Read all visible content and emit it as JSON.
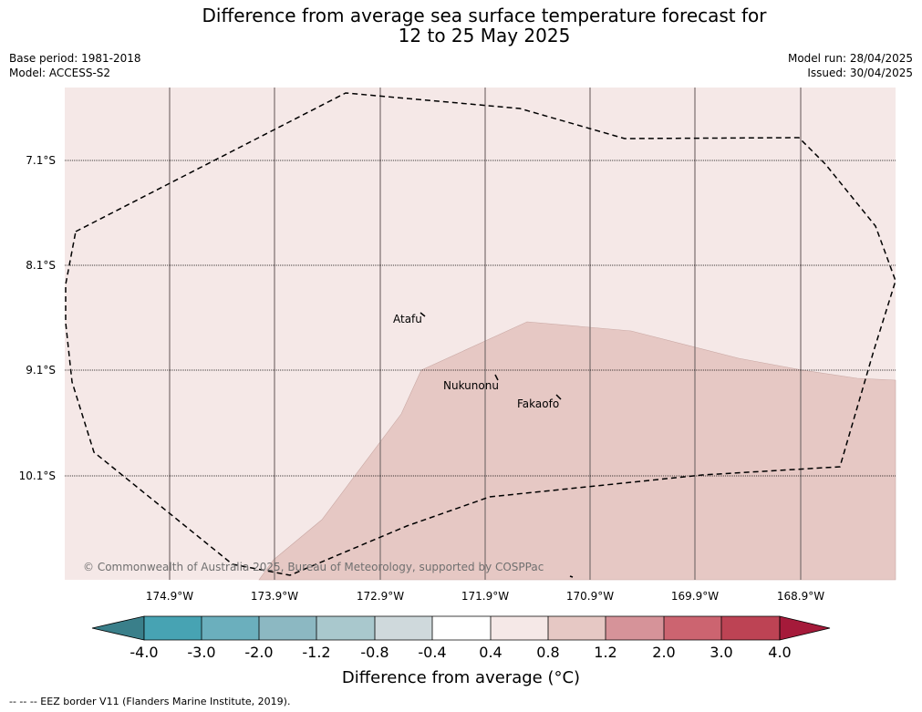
{
  "header": {
    "title_line1": "Difference from average sea surface temperature forecast for",
    "title_line2": "12 to 25 May 2025",
    "base_period": "Base period: 1981-2018",
    "model": "Model: ACCESS-S2",
    "model_run": "Model run: 28/04/2025",
    "issued": "Issued: 30/04/2025"
  },
  "map": {
    "lat_labels": [
      "7.1°S",
      "8.1°S",
      "9.1°S",
      "10.1°S"
    ],
    "lon_labels": [
      "174.9°W",
      "173.9°W",
      "172.9°W",
      "171.9°W",
      "170.9°W",
      "169.9°W",
      "168.9°W"
    ],
    "places": [
      "Atafu",
      "Nukunonu",
      "Fakaofo"
    ],
    "copyright": "© Commonwealth of Australia 2025, Bureau of Meteorology, supported by COSPPac",
    "colors": {
      "background_anomaly": "#f5e8e7",
      "warm_anomaly": "#e6c8c4",
      "eez_border": "#000000"
    }
  },
  "colorbar": {
    "title": "Difference from average (°C)",
    "ticks": [
      "-4.0",
      "-3.0",
      "-2.0",
      "-1.2",
      "-0.8",
      "-0.4",
      "0.4",
      "0.8",
      "1.2",
      "2.0",
      "3.0",
      "4.0"
    ],
    "colors": [
      "#3a7f8a",
      "#47a3b3",
      "#6bafbd",
      "#8cb8c2",
      "#a9c8cd",
      "#cfd9dc",
      "#ffffff",
      "#f5e8e7",
      "#e6c8c4",
      "#d69399",
      "#cc6470",
      "#bd4354",
      "#a51a3a"
    ]
  },
  "footnote": "-- -- -- EEZ border V11 (Flanders Marine Institute, 2019)."
}
